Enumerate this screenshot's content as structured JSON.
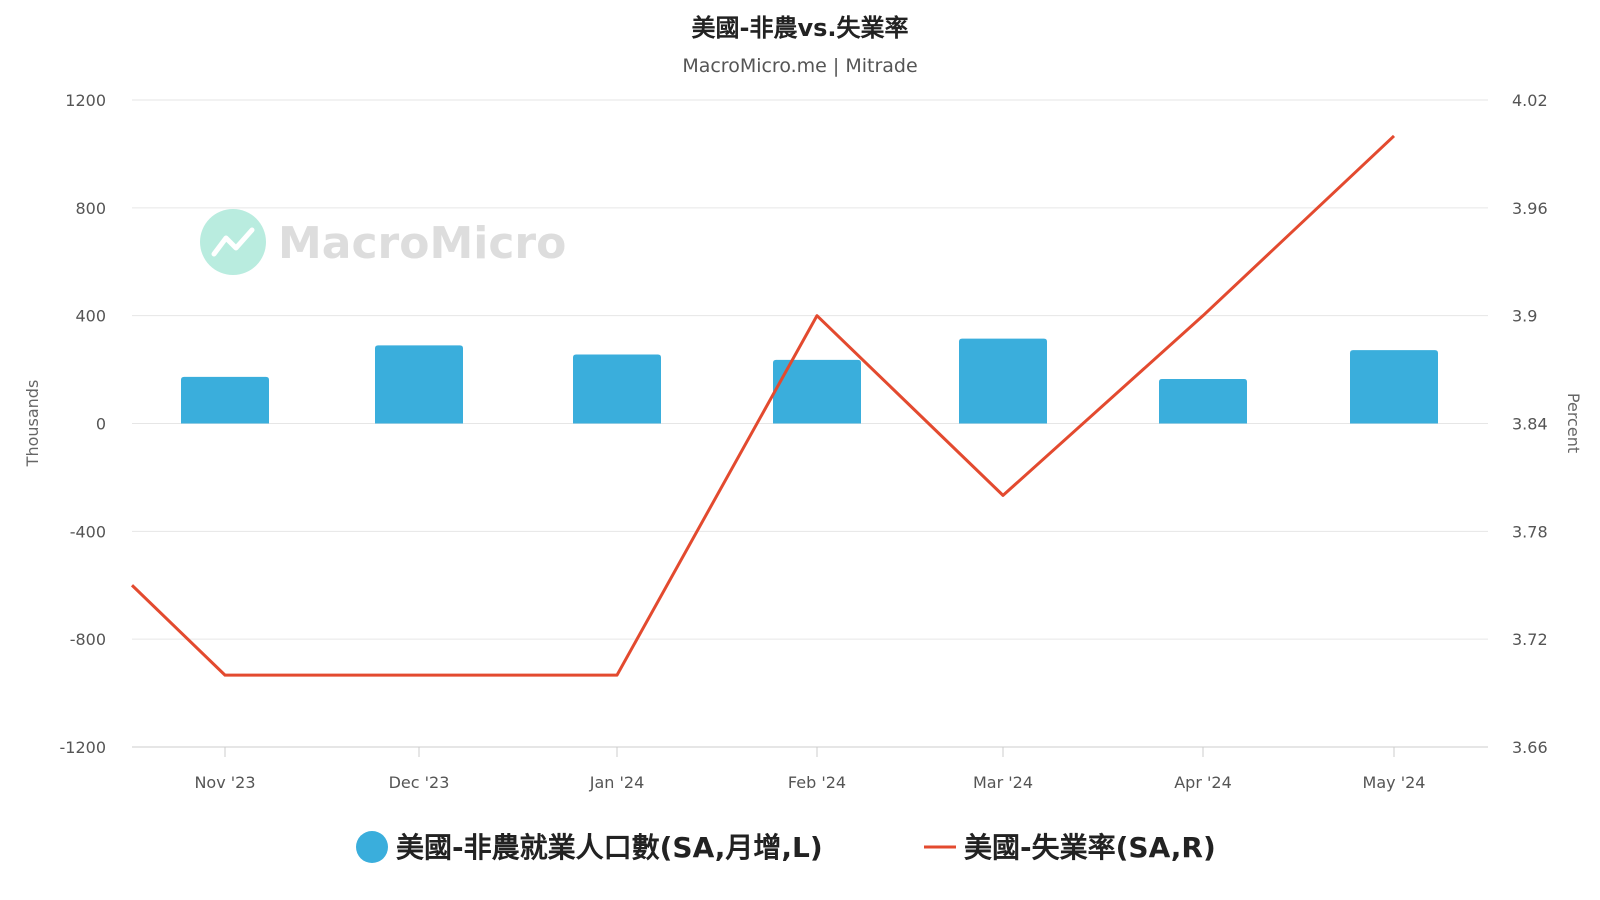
{
  "chart_data": {
    "type": "bar",
    "title": "美國-非農vs.失業率",
    "subtitle": "MacroMicro.me | Mitrade",
    "watermark": "MacroMicro",
    "categories": [
      "Nov '23",
      "Dec '23",
      "Jan '24",
      "Feb '24",
      "Mar '24",
      "Apr '24",
      "May '24"
    ],
    "y_left": {
      "label": "Thousands",
      "ticks": [
        "1200",
        "800",
        "400",
        "0",
        "-400",
        "-800",
        "-1200"
      ],
      "ylim": [
        -1200,
        1200
      ]
    },
    "y_right": {
      "label": "Percent",
      "ticks": [
        "4.02",
        "3.96",
        "3.9",
        "3.84",
        "3.78",
        "3.72",
        "3.66"
      ],
      "ylim": [
        3.66,
        4.02
      ]
    },
    "grid": true,
    "legend_position": "bottom",
    "series": [
      {
        "name": "美國-非農就業人口數(SA,月增,L)",
        "type": "bar",
        "axis": "left",
        "color": "#3aaedc",
        "values": [
          173,
          290,
          256,
          236,
          315,
          165,
          272
        ]
      },
      {
        "name": "美國-失業率(SA,R)",
        "type": "line",
        "axis": "right",
        "color": "#e34a2f",
        "lead_in": 3.75,
        "values": [
          3.7,
          3.7,
          3.7,
          3.9,
          3.8,
          3.9,
          4.0
        ]
      }
    ]
  }
}
